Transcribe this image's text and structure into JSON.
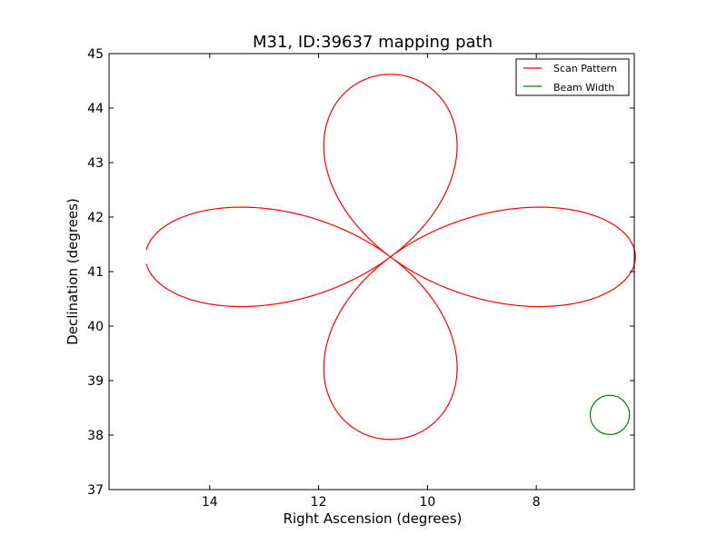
{
  "chart_data": {
    "type": "line",
    "title": "M31, ID:39637 mapping path",
    "xlabel": "Right Ascension (degrees)",
    "ylabel": "Declination (degrees)",
    "xlim": [
      15.85,
      6.2
    ],
    "ylim": [
      37,
      45
    ],
    "x_ticks": [
      14,
      12,
      10,
      8
    ],
    "y_ticks": [
      37,
      38,
      39,
      40,
      41,
      42,
      43,
      44,
      45
    ],
    "x_tick_labels": [
      "14",
      "12",
      "10",
      "8"
    ],
    "y_tick_labels": [
      "37",
      "38",
      "39",
      "40",
      "41",
      "42",
      "43",
      "44",
      "45"
    ],
    "grid": false,
    "legend_position": "top-right",
    "legend": [
      {
        "label": "Scan Pattern",
        "color": "#ff0000"
      },
      {
        "label": "Beam Width",
        "color": "#008000"
      }
    ],
    "series": [
      {
        "name": "Scan Pattern",
        "color": "#ff0000",
        "center": [
          10.68,
          41.27
        ],
        "lobe_radius_ra": 4.5,
        "lobe_radius_dec": 3.35,
        "gap_at_start_dec": 0.1
      },
      {
        "name": "Beam Width",
        "color": "#008000",
        "center": [
          6.65,
          38.37
        ],
        "radius_dec": 0.36
      }
    ]
  }
}
